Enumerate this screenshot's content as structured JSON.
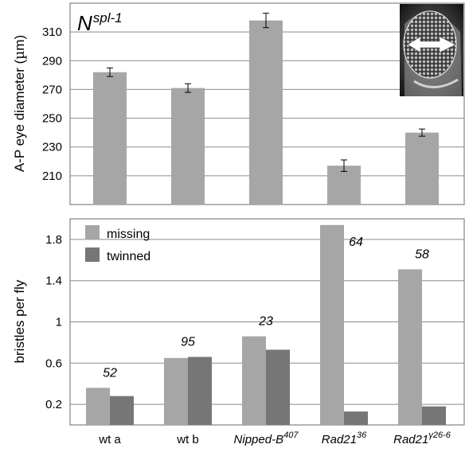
{
  "chart_data": [
    {
      "type": "bar",
      "genotype_label": "N",
      "genotype_superscript": "spl-1",
      "ylabel": "A-P eye diameter (",
      "ylabel_unit": "µ",
      "ylabel_unit_suffix": "m)",
      "ylim": [
        190,
        330
      ],
      "yticks": [
        "210",
        "230",
        "250",
        "270",
        "290",
        "310"
      ],
      "ytick_values": [
        210,
        230,
        250,
        270,
        290,
        310
      ],
      "categories": [
        "wt a",
        "wt b",
        "Nipped-B407",
        "Rad2136",
        "Rad21γ26-6"
      ],
      "values": [
        282,
        271,
        318,
        217,
        240
      ],
      "errors": [
        3,
        3,
        5,
        4,
        2.5
      ],
      "grid": true,
      "colors": {
        "bar": "#a6a6a6"
      }
    },
    {
      "type": "bar",
      "ylabel": "bristles per fly",
      "ylim": [
        0,
        2.0
      ],
      "yticks": [
        "0.2",
        "0.6",
        "1",
        "1.4",
        "1.8"
      ],
      "ytick_values": [
        0.2,
        0.6,
        1.0,
        1.4,
        1.8
      ],
      "categories": [
        "wt a",
        "wt b",
        "Nipped-B407",
        "Rad2136",
        "Rad21γ26-6"
      ],
      "series": [
        {
          "name": "missing",
          "values": [
            0.36,
            0.65,
            0.86,
            1.94,
            1.51
          ],
          "color": "#a6a6a6"
        },
        {
          "name": "twinned",
          "values": [
            0.28,
            0.66,
            0.73,
            0.13,
            0.18
          ],
          "color": "#767676"
        }
      ],
      "counts": [
        "52",
        "95",
        "23",
        "64",
        "58"
      ],
      "legend_position": "top-left",
      "grid": true
    }
  ],
  "x_axis": {
    "labels": [
      {
        "main": "wt a",
        "sup": "",
        "italic": false
      },
      {
        "main": "wt b",
        "sup": "",
        "italic": false
      },
      {
        "main": "Nipped-B",
        "sup": "407",
        "italic": true
      },
      {
        "main": "Rad21",
        "sup": "36",
        "italic": true
      },
      {
        "main": "Rad21",
        "sup": "γ26-6",
        "italic": true
      }
    ]
  }
}
